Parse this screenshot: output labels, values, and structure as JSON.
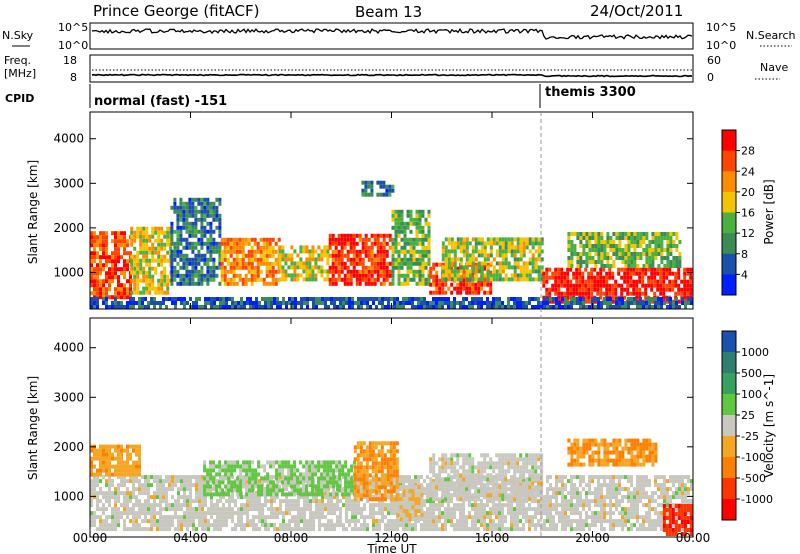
{
  "header": {
    "station": "Prince George (fitACF)",
    "beam": "Beam 13",
    "date": "24/Oct/2011"
  },
  "strip_labels": {
    "nsky": "N.Sky",
    "nsearch": "N.Search",
    "freq_line1": "Freq.",
    "freq_line2": "[MHz]",
    "nave": "Nave",
    "cpid": "CPID",
    "nsky_ticks": [
      "10^5",
      "10^0"
    ],
    "nsearch_ticks": [
      "10^5",
      "10^0"
    ],
    "freq_ticks": [
      "18",
      "8"
    ],
    "nave_ticks": [
      "60",
      "0"
    ]
  },
  "cpid_segments": [
    {
      "label": "normal (fast) -151",
      "start_hour": 0
    },
    {
      "label": "themis 3300",
      "start_hour": 18
    }
  ],
  "time_axis": {
    "label": "Time UT",
    "ticks": [
      "00:00",
      "04:00",
      "08:00",
      "12:00",
      "16:00",
      "20:00",
      "00:00"
    ],
    "range_hours": [
      0,
      24
    ]
  },
  "colors": {
    "power": [
      "#0020ff",
      "#1c4faa",
      "#3a8b56",
      "#4cb040",
      "#f5c400",
      "#ff8c00",
      "#ff4500",
      "#ff0000"
    ],
    "velocity": [
      "#1c4fb0",
      "#2f7f6f",
      "#3aa060",
      "#60c840",
      "#c8c8c0",
      "#f5a623",
      "#ff7f00",
      "#ff3500",
      "#ff0000"
    ]
  },
  "chart_data": [
    {
      "type": "heatmap",
      "name": "power",
      "ylabel": "Slant Range [km]",
      "ylim": [
        180,
        4600
      ],
      "yticks": [
        "1000",
        "2000",
        "3000",
        "4000"
      ],
      "colorbar_label": "Power [dB]",
      "colorbar_ticks": [
        "4",
        "8",
        "12",
        "16",
        "20",
        "24",
        "28"
      ],
      "colorbar_range": [
        0,
        32
      ],
      "regions": [
        {
          "t0": 0.0,
          "t1": 1.6,
          "r0": 400,
          "r1": 1900,
          "level": 26
        },
        {
          "t0": 1.6,
          "t1": 3.2,
          "r0": 500,
          "r1": 2000,
          "level": 18
        },
        {
          "t0": 3.2,
          "t1": 5.2,
          "r0": 700,
          "r1": 2600,
          "level": 8
        },
        {
          "t0": 5.2,
          "t1": 7.5,
          "r0": 700,
          "r1": 1700,
          "level": 22
        },
        {
          "t0": 7.5,
          "t1": 9.5,
          "r0": 800,
          "r1": 1600,
          "level": 18
        },
        {
          "t0": 9.5,
          "t1": 12.0,
          "r0": 700,
          "r1": 1800,
          "level": 28
        },
        {
          "t0": 12.0,
          "t1": 13.5,
          "r0": 700,
          "r1": 2400,
          "level": 14
        },
        {
          "t0": 13.5,
          "t1": 16.0,
          "r0": 500,
          "r1": 1200,
          "level": 27
        },
        {
          "t0": 14.0,
          "t1": 18.0,
          "r0": 800,
          "r1": 1700,
          "level": 16
        },
        {
          "t0": 18.0,
          "t1": 24.0,
          "r0": 300,
          "r1": 1100,
          "level": 29
        },
        {
          "t0": 19.0,
          "t1": 23.5,
          "r0": 1100,
          "r1": 1900,
          "level": 14
        },
        {
          "t0": 0.0,
          "t1": 24.0,
          "r0": 180,
          "r1": 400,
          "level": 6
        },
        {
          "t0": 10.8,
          "t1": 12.1,
          "r0": 2700,
          "r1": 3000,
          "level": 8
        }
      ]
    },
    {
      "type": "heatmap",
      "name": "velocity",
      "ylabel": "Slant Range [km]",
      "ylim": [
        180,
        4600
      ],
      "yticks": [
        "1000",
        "2000",
        "3000",
        "4000"
      ],
      "colorbar_label": "Velocity [m s^-1]",
      "colorbar_ticks": [
        "1000",
        "500",
        "100",
        "25",
        "-25",
        "-100",
        "-500",
        "-1000"
      ],
      "colorbar_range": [
        -1200,
        1200
      ],
      "regions": [
        {
          "t0": 0.0,
          "t1": 24.0,
          "r0": 300,
          "r1": 1400,
          "level": 0
        },
        {
          "t0": 0.0,
          "t1": 2.0,
          "r0": 1400,
          "r1": 2000,
          "level": -300
        },
        {
          "t0": 4.5,
          "t1": 10.5,
          "r0": 1000,
          "r1": 1700,
          "level": 200
        },
        {
          "t0": 10.5,
          "t1": 12.2,
          "r0": 900,
          "r1": 2100,
          "level": -400
        },
        {
          "t0": 12.2,
          "t1": 13.2,
          "r0": 500,
          "r1": 1200,
          "level": -80
        },
        {
          "t0": 13.5,
          "t1": 18.0,
          "r0": 900,
          "r1": 1800,
          "level": 0
        },
        {
          "t0": 19.0,
          "t1": 22.5,
          "r0": 1600,
          "r1": 2100,
          "level": -400
        },
        {
          "t0": 22.8,
          "t1": 24.0,
          "r0": 200,
          "r1": 800,
          "level": -900
        }
      ]
    }
  ]
}
